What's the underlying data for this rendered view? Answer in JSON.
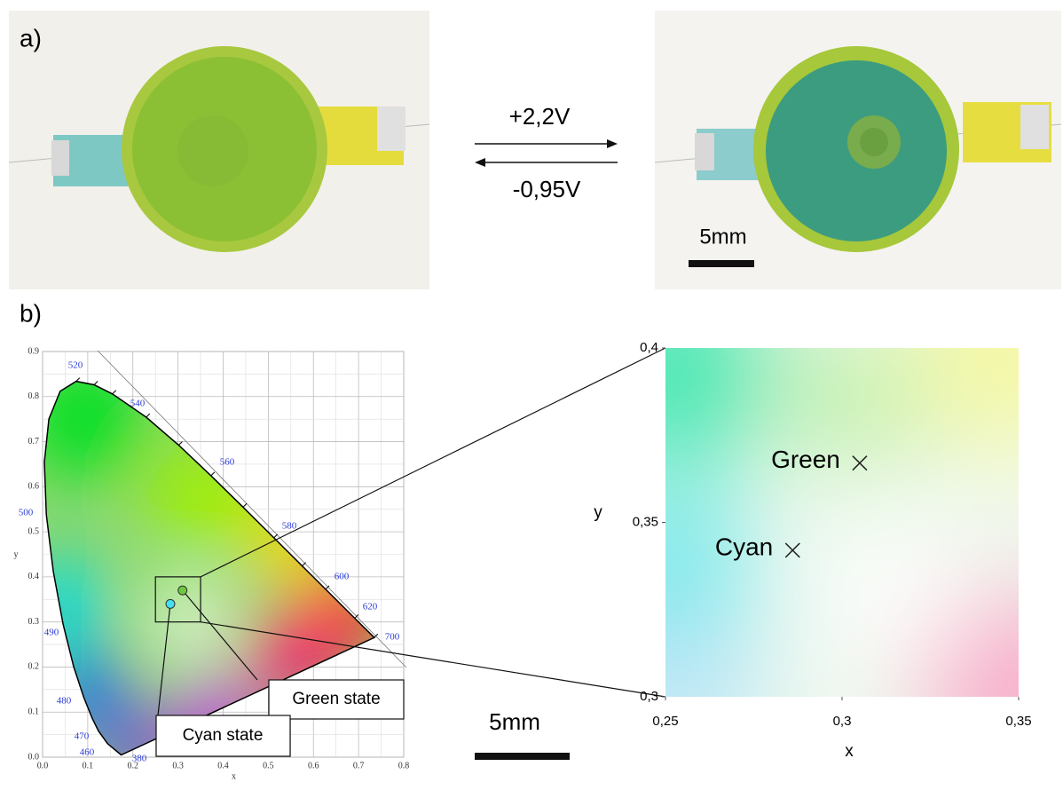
{
  "panel_a": {
    "label": "a)",
    "forward_voltage": "+2,2V",
    "reverse_voltage": "-0,95V",
    "scale_bar": "5mm"
  },
  "panel_b": {
    "label": "b)",
    "scale_bar": "5mm",
    "cie_diagram": {
      "xlabel": "x",
      "ylabel": "y",
      "xlim": [
        0,
        0.8
      ],
      "ylim": [
        0,
        0.9
      ],
      "xticks": [
        {
          "value": 0,
          "label": "0.0"
        },
        0.1,
        0.2,
        0.3,
        0.4,
        0.5,
        0.6,
        0.7,
        0.8
      ],
      "yticks": [
        {
          "value": 0,
          "label": "0.0"
        },
        0.1,
        0.2,
        0.3,
        0.4,
        0.5,
        0.6,
        0.7,
        0.8,
        0.9
      ],
      "wavelength_labels": [
        "520",
        "540",
        "560",
        "580",
        "600",
        "620",
        "700",
        "500",
        "490",
        "480",
        "470",
        "460",
        "380"
      ],
      "points": [
        {
          "name": "Green state",
          "x": 0.31,
          "y": 0.37
        },
        {
          "name": "Cyan state",
          "x": 0.283,
          "y": 0.34
        }
      ]
    },
    "zoom": {
      "xlabel": "x",
      "ylabel": "y",
      "xlim": [
        0.25,
        0.35
      ],
      "ylim": [
        0.3,
        0.4
      ],
      "xticks": [
        {
          "value": 0.25,
          "label": "0,25"
        },
        {
          "value": 0.3,
          "label": "0,3"
        },
        {
          "value": 0.35,
          "label": "0,35"
        }
      ],
      "yticks": [
        {
          "value": 0.3,
          "label": "0,3"
        },
        {
          "value": 0.35,
          "label": "0,35"
        },
        {
          "value": 0.4,
          "label": "0,4"
        }
      ],
      "points": [
        {
          "name": "Green",
          "x": 0.305,
          "y": 0.367
        },
        {
          "name": "Cyan",
          "x": 0.286,
          "y": 0.342
        }
      ]
    }
  }
}
